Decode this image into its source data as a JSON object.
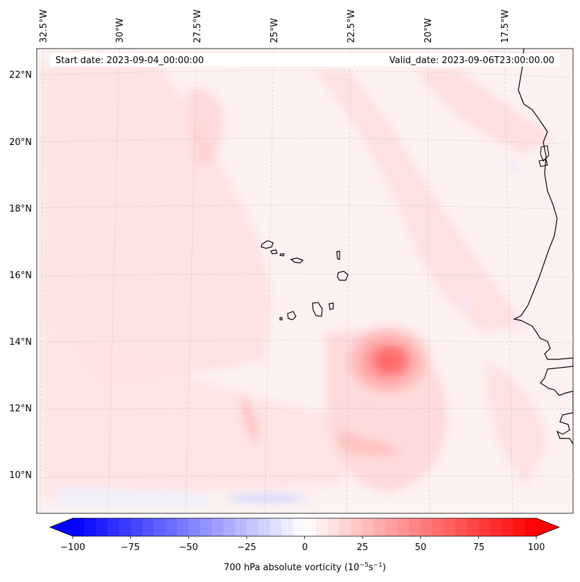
{
  "map": {
    "start_label": "Start date: 2023-09-04_00:00:00",
    "valid_label": "Valid_date: 2023-09-06T23:00:00.00",
    "lon_labels": [
      "32.5°W",
      "30°W",
      "27.5°W",
      "25°W",
      "22.5°W",
      "20°W",
      "17.5°W"
    ],
    "lat_labels": [
      "22°N",
      "20°N",
      "18°N",
      "16°N",
      "14°N",
      "12°N",
      "10°N"
    ],
    "features": [
      "Cabo Verde islands",
      "West African coastline",
      "vorticity maximum near 13.3°N 21.5°W"
    ]
  },
  "colorbar": {
    "ticks": [
      "−100",
      "−75",
      "−50",
      "−25",
      "0",
      "25",
      "50",
      "75",
      "100"
    ],
    "label": "700 hPa absolute vorticity (10",
    "label_exp1": "−5",
    "label_mid": "s",
    "label_exp2": "−1",
    "label_end": ")"
  },
  "colors": {
    "negative": "#0000ff",
    "positive": "#ff0000",
    "neutral": "#ffffff"
  }
}
